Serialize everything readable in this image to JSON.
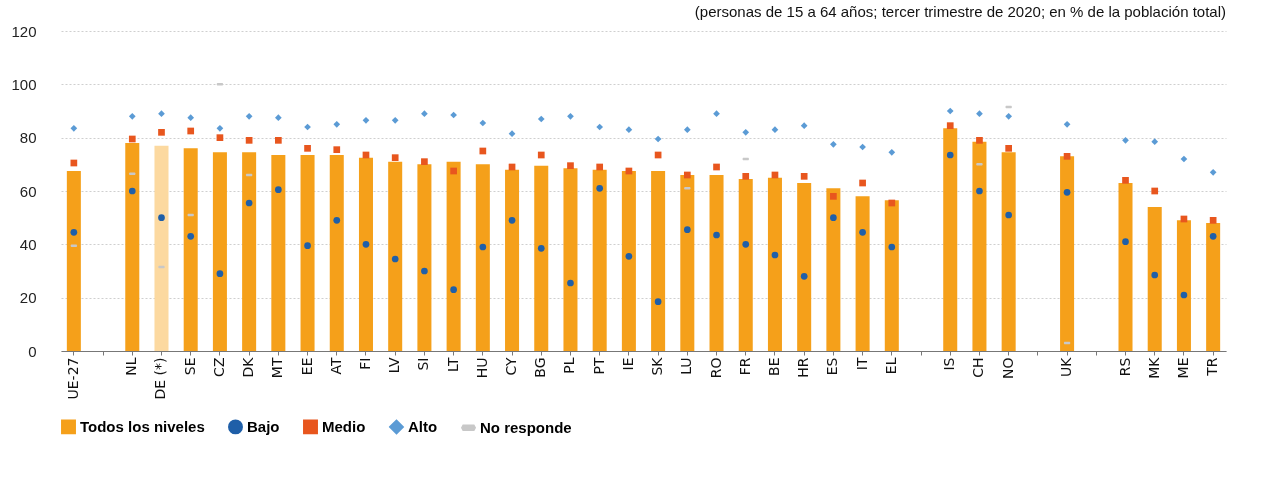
{
  "chart_data": {
    "type": "bar",
    "subtitle": "(personas de 15 a 64 años; tercer trimestre de 2020; en % de la población total)",
    "categories": [
      "UE-27",
      null,
      "NL",
      "DE (*)",
      "SE",
      "CZ",
      "DK",
      "MT",
      "EE",
      "AT",
      "FI",
      "LV",
      "SI",
      "LT",
      "HU",
      "CY",
      "BG",
      "PL",
      "PT",
      "IE",
      "SK",
      "LU",
      "RO",
      "FR",
      "BE",
      "HR",
      "ES",
      "IT",
      "EL",
      null,
      "IS",
      "CH",
      "NO",
      null,
      "UK",
      null,
      "RS",
      "MK",
      "ME",
      "TR"
    ],
    "series": [
      {
        "name": "Todos los niveles",
        "type": "bar",
        "color": "#f5a01a",
        "colors": [
          "#f5a01a",
          null,
          "#f5a01a",
          "#fcd9a0",
          "#f5a01a",
          "#f5a01a",
          "#f5a01a",
          "#f5a01a",
          "#f5a01a",
          "#f5a01a",
          "#f5a01a",
          "#f5a01a",
          "#f5a01a",
          "#f5a01a",
          "#f5a01a",
          "#f5a01a",
          "#f5a01a",
          "#f5a01a",
          "#f5a01a",
          "#f5a01a",
          "#f5a01a",
          "#f5a01a",
          "#f5a01a",
          "#f5a01a",
          "#f5a01a",
          "#f5a01a",
          "#f5a01a",
          "#f5a01a",
          "#f5a01a",
          null,
          "#f5a01a",
          "#f5a01a",
          "#f5a01a",
          null,
          "#f5a01a",
          null,
          "#f5a01a",
          "#f5a01a",
          "#f5a01a",
          "#f5a01a"
        ],
        "values": [
          67.5,
          null,
          78,
          77,
          76,
          74.5,
          74.5,
          73.5,
          73.5,
          73.5,
          72.5,
          71,
          70,
          71,
          70,
          68,
          69.5,
          68.5,
          68,
          67.5,
          67.5,
          66,
          66,
          64.5,
          65,
          63,
          61,
          58,
          56.5,
          null,
          83.5,
          78.5,
          74.5,
          null,
          73,
          null,
          63,
          54,
          49,
          48
        ]
      },
      {
        "name": "Bajo",
        "type": "scatter",
        "marker": "circle",
        "color": "#1f5fa8",
        "values": [
          44.5,
          null,
          60,
          50,
          43,
          29,
          55.5,
          60.5,
          39.5,
          49,
          40,
          34.5,
          30,
          23,
          39,
          49,
          38.5,
          25.5,
          61,
          35.5,
          18.5,
          45.5,
          43.5,
          40,
          36,
          28,
          50,
          44.5,
          39,
          null,
          73.5,
          60,
          51,
          null,
          59.5,
          null,
          41,
          28.5,
          21,
          43
        ]
      },
      {
        "name": "Medio",
        "type": "scatter",
        "marker": "square",
        "color": "#e8561e",
        "values": [
          70.5,
          null,
          79.5,
          82,
          82.5,
          80,
          79,
          79,
          76,
          75.5,
          73.5,
          72.5,
          71,
          67.5,
          75,
          69,
          73.5,
          69.5,
          69,
          67.5,
          73.5,
          66,
          69,
          65.5,
          66,
          65.5,
          58,
          63,
          55.5,
          null,
          84.5,
          79,
          76,
          null,
          73,
          null,
          64,
          60,
          49.5,
          49
        ]
      },
      {
        "name": "Alto",
        "type": "scatter",
        "marker": "diamond",
        "color": "#5b9bd5",
        "values": [
          83.5,
          null,
          88,
          89,
          87.5,
          83.5,
          88,
          87.5,
          84,
          85,
          86.5,
          86.5,
          89,
          88.5,
          85.5,
          81.5,
          87,
          88,
          84,
          83,
          79.5,
          83,
          89,
          82,
          83,
          84.5,
          77.5,
          76.5,
          74.5,
          null,
          90,
          89,
          88,
          null,
          85,
          null,
          79,
          78.5,
          72,
          67
        ]
      },
      {
        "name": "No responde",
        "type": "scatter",
        "color": "#c8c8c8",
        "values": [
          39.5,
          null,
          66.5,
          31.5,
          51,
          100,
          66,
          null,
          null,
          null,
          null,
          null,
          null,
          null,
          null,
          null,
          null,
          null,
          null,
          null,
          null,
          61,
          null,
          72,
          null,
          null,
          null,
          null,
          null,
          null,
          null,
          70,
          91.5,
          null,
          3,
          null,
          null,
          null,
          null,
          null
        ]
      }
    ],
    "ylim": [
      0,
      120
    ],
    "yticks": [
      0,
      20,
      40,
      60,
      80,
      100,
      120
    ],
    "grid": "y",
    "legend": "bottom"
  }
}
